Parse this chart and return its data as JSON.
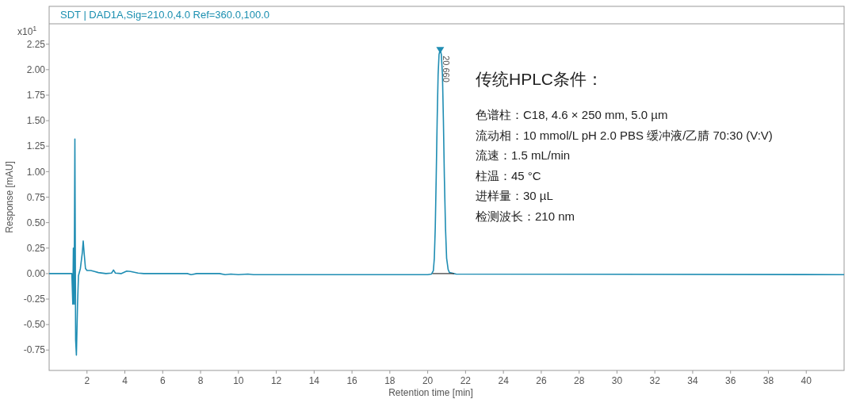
{
  "chart_data": {
    "type": "line",
    "title": "SDT | DAD1A,Sig=210.0,4.0  Ref=360.0,100.0",
    "xlabel": "Retention time [min]",
    "ylabel": "Response [mAU]",
    "xlim": [
      0,
      42
    ],
    "ylim": [
      -0.95,
      2.45
    ],
    "xticks": [
      2,
      4,
      6,
      8,
      10,
      12,
      14,
      16,
      18,
      20,
      22,
      24,
      26,
      28,
      30,
      32,
      34,
      36,
      38,
      40
    ],
    "yticks": [
      {
        "value": -0.75,
        "label": "-0.75"
      },
      {
        "value": -0.5,
        "label": "-0.50"
      },
      {
        "value": -0.25,
        "label": "-0.25"
      },
      {
        "value": 0,
        "label": "0.00"
      },
      {
        "value": 0.25,
        "label": "0.25"
      },
      {
        "value": 0.5,
        "label": "0.50"
      },
      {
        "value": 0.75,
        "label": "0.75"
      },
      {
        "value": 1,
        "label": "1.00"
      },
      {
        "value": 1.25,
        "label": "1.25"
      },
      {
        "value": 1.5,
        "label": "1.50"
      },
      {
        "value": 1.75,
        "label": "1.75"
      },
      {
        "value": 2,
        "label": "2.00"
      },
      {
        "value": 2.25,
        "label": "2.25"
      }
    ],
    "grid": false,
    "marker": "none",
    "line_style": "solid",
    "series": [
      {
        "color": "#1f8db3",
        "x": [
          0,
          1.2,
          1.25,
          1.28,
          1.32,
          1.36,
          1.4,
          1.44,
          1.5,
          1.55,
          1.65,
          1.75,
          1.8,
          1.85,
          1.92,
          2,
          2.2,
          2.4,
          2.6,
          3,
          3.3,
          3.4,
          3.5,
          3.8,
          4.1,
          4.3,
          4.7,
          5,
          7.3,
          7.5,
          7.8,
          9,
          9.3,
          9.6,
          10,
          10.5,
          10.8,
          20,
          20.2,
          20.3,
          20.35,
          20.4,
          20.45,
          20.5,
          20.55,
          20.6,
          20.66,
          20.72,
          20.78,
          20.83,
          20.88,
          20.94,
          21,
          21.08,
          21.15,
          21.5,
          42
        ],
        "values": [
          0,
          0,
          -0.3,
          0.25,
          -0.3,
          1.32,
          -0.65,
          -0.8,
          -0.3,
          -0.02,
          0.05,
          0.2,
          0.32,
          0.2,
          0.05,
          0.03,
          0.03,
          0.02,
          0.01,
          0,
          0.005,
          0.035,
          0.005,
          0,
          0.025,
          0.02,
          0.005,
          0,
          0,
          -0.01,
          0,
          0,
          -0.01,
          -0.005,
          -0.01,
          -0.005,
          -0.01,
          -0.01,
          -0.005,
          0.03,
          0.15,
          0.45,
          0.95,
          1.5,
          1.95,
          2.15,
          2.2,
          2.15,
          1.95,
          1.5,
          0.95,
          0.45,
          0.15,
          0.04,
          0.01,
          -0.005,
          -0.01
        ]
      },
      {
        "color": "#333333",
        "x": [
          20.25,
          21.4
        ],
        "values": [
          0,
          0
        ]
      }
    ],
    "annotations": [
      {
        "text": "20.660",
        "x": 20.66,
        "y": 2.2
      },
      "x10$^{1}$",
      "传统HPLC条件：",
      "色谱柱：C18, 4.6 × 250 mm, 5.0 µm",
      "流动相：10 mmol/L pH 2.0 PBS 缓冲液/乙腈 70:30 (V:V)",
      "流速：1.5 mL/min",
      "柱温：45 °C",
      "进样量：30 µL",
      "检测波长：210 nm"
    ]
  }
}
